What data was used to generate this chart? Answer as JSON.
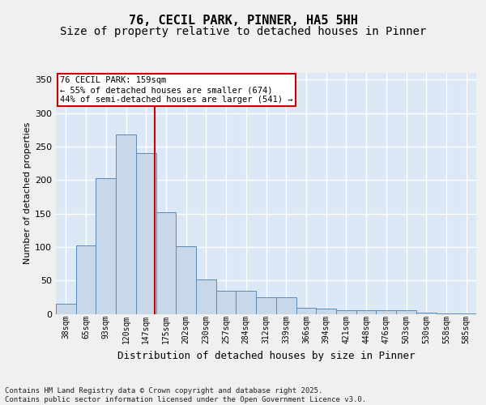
{
  "title1": "76, CECIL PARK, PINNER, HA5 5HH",
  "title2": "Size of property relative to detached houses in Pinner",
  "xlabel": "Distribution of detached houses by size in Pinner",
  "ylabel": "Number of detached properties",
  "bar_values": [
    15,
    102,
    203,
    268,
    240,
    152,
    101,
    52,
    35,
    35,
    25,
    25,
    9,
    8,
    5,
    5,
    5,
    5,
    2,
    1,
    1
  ],
  "bin_labels": [
    "38sqm",
    "65sqm",
    "93sqm",
    "120sqm",
    "147sqm",
    "175sqm",
    "202sqm",
    "230sqm",
    "257sqm",
    "284sqm",
    "312sqm",
    "339sqm",
    "366sqm",
    "394sqm",
    "421sqm",
    "448sqm",
    "476sqm",
    "503sqm",
    "530sqm",
    "558sqm",
    "585sqm"
  ],
  "bar_color": "#c8d8e8",
  "bar_edge_color": "#5a8ab8",
  "bg_color": "#dce8f5",
  "grid_color": "#ffffff",
  "vline_color": "#cc0000",
  "annotation_text": "76 CECIL PARK: 159sqm\n← 55% of detached houses are smaller (674)\n44% of semi-detached houses are larger (541) →",
  "annotation_box_color": "#ffffff",
  "annotation_box_edge": "#cc0000",
  "ylim": [
    0,
    360
  ],
  "yticks": [
    0,
    50,
    100,
    150,
    200,
    250,
    300,
    350
  ],
  "footer_text": "Contains HM Land Registry data © Crown copyright and database right 2025.\nContains public sector information licensed under the Open Government Licence v3.0.",
  "title1_fontsize": 11,
  "title2_fontsize": 10,
  "xlabel_fontsize": 9,
  "ylabel_fontsize": 8,
  "tick_fontsize": 7,
  "annotation_fontsize": 7.5,
  "footer_fontsize": 6.5
}
